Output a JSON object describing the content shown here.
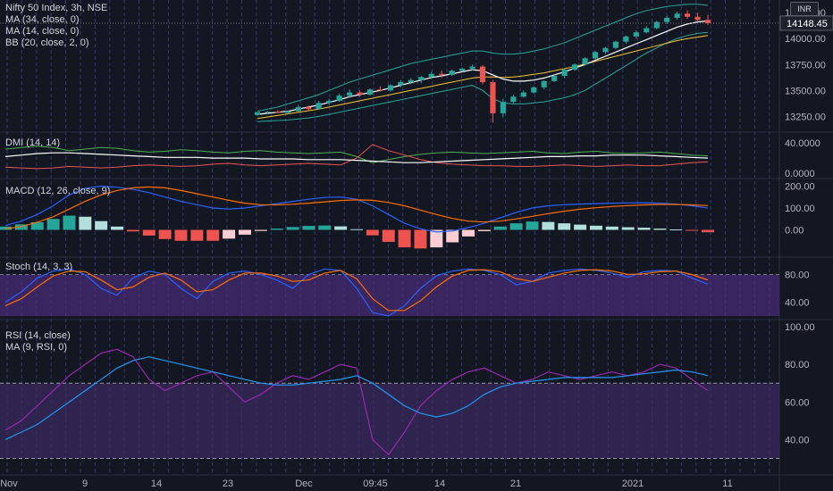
{
  "chart_data": {
    "type": "candlestick-with-indicators",
    "symbol": "Nifty 50 Index, 3h, NSE",
    "currency": "INR",
    "last_price_label": "14148.45",
    "price_ticks": [
      "14250.00",
      "14000.00",
      "13750.00",
      "13500.00",
      "13250.00"
    ],
    "price_tick_values": [
      14250,
      14000,
      13750,
      13500,
      13250
    ],
    "x_labels": [
      "Nov",
      "9",
      "14",
      "23",
      "Dec",
      "09:45",
      "14",
      "21",
      "2021",
      "11"
    ],
    "candles": [
      [
        13264,
        13290,
        13255,
        13292
      ],
      [
        13290,
        13300,
        13270,
        13295
      ],
      [
        13295,
        13310,
        13282,
        13285
      ],
      [
        13285,
        13305,
        13275,
        13300
      ],
      [
        13300,
        13360,
        13295,
        13340
      ],
      [
        13340,
        13355,
        13300,
        13320
      ],
      [
        13320,
        13400,
        13315,
        13380
      ],
      [
        13380,
        13420,
        13360,
        13400
      ],
      [
        13400,
        13470,
        13390,
        13450
      ],
      [
        13450,
        13510,
        13430,
        13480
      ],
      [
        13480,
        13500,
        13440,
        13460
      ],
      [
        13460,
        13520,
        13450,
        13510
      ],
      [
        13510,
        13540,
        13490,
        13500
      ],
      [
        13500,
        13560,
        13490,
        13550
      ],
      [
        13550,
        13600,
        13530,
        13580
      ],
      [
        13580,
        13620,
        13560,
        13600
      ],
      [
        13600,
        13640,
        13570,
        13630
      ],
      [
        13630,
        13680,
        13610,
        13660
      ],
      [
        13660,
        13690,
        13620,
        13650
      ],
      [
        13650,
        13700,
        13640,
        13690
      ],
      [
        13690,
        13720,
        13680,
        13710
      ],
      [
        13710,
        13750,
        13690,
        13730
      ],
      [
        13730,
        13745,
        13560,
        13580
      ],
      [
        13580,
        13600,
        13190,
        13280
      ],
      [
        13280,
        13420,
        13240,
        13390
      ],
      [
        13390,
        13460,
        13370,
        13440
      ],
      [
        13440,
        13500,
        13430,
        13480
      ],
      [
        13480,
        13540,
        13470,
        13530
      ],
      [
        13530,
        13600,
        13510,
        13590
      ],
      [
        13590,
        13660,
        13580,
        13640
      ],
      [
        13640,
        13710,
        13620,
        13700
      ],
      [
        13700,
        13760,
        13690,
        13750
      ],
      [
        13750,
        13820,
        13740,
        13810
      ],
      [
        13810,
        13880,
        13800,
        13870
      ],
      [
        13870,
        13920,
        13850,
        13910
      ],
      [
        13910,
        13980,
        13900,
        13970
      ],
      [
        13970,
        14030,
        13950,
        14020
      ],
      [
        14020,
        14080,
        14000,
        14060
      ],
      [
        14060,
        14120,
        14050,
        14100
      ],
      [
        14100,
        14170,
        14090,
        14160
      ],
      [
        14160,
        14220,
        14140,
        14200
      ],
      [
        14200,
        14260,
        14180,
        14240
      ],
      [
        14240,
        14270,
        14190,
        14210
      ],
      [
        14210,
        14250,
        14160,
        14180
      ],
      [
        14180,
        14230,
        14130,
        14148.45
      ]
    ],
    "overlay_legends": [
      "MA (34, close, 0)",
      "MA (14, close, 0)",
      "BB (20, close, 2, 0)"
    ],
    "ma34": [
      13230,
      13245,
      13260,
      13275,
      13290,
      13305,
      13320,
      13340,
      13360,
      13380,
      13400,
      13420,
      13440,
      13460,
      13480,
      13500,
      13520,
      13540,
      13560,
      13580,
      13600,
      13620,
      13630,
      13630,
      13625,
      13630,
      13640,
      13655,
      13670,
      13690,
      13710,
      13730,
      13755,
      13780,
      13805,
      13830,
      13855,
      13880,
      13905,
      13930,
      13955,
      13980,
      14000,
      14015,
      14030
    ],
    "ma14": [
      13270,
      13280,
      13290,
      13300,
      13320,
      13340,
      13360,
      13385,
      13410,
      13440,
      13460,
      13480,
      13500,
      13525,
      13550,
      13575,
      13600,
      13625,
      13640,
      13660,
      13680,
      13700,
      13690,
      13650,
      13610,
      13590,
      13590,
      13600,
      13620,
      13650,
      13680,
      13715,
      13750,
      13790,
      13830,
      13870,
      13910,
      13950,
      13990,
      14030,
      14070,
      14110,
      14140,
      14160,
      14170
    ],
    "bb_upper": [
      13300,
      13320,
      13340,
      13370,
      13400,
      13430,
      13460,
      13500,
      13540,
      13580,
      13610,
      13640,
      13670,
      13700,
      13730,
      13760,
      13780,
      13800,
      13820,
      13840,
      13860,
      13880,
      13880,
      13860,
      13850,
      13850,
      13860,
      13880,
      13900,
      13930,
      13960,
      14000,
      14040,
      14080,
      14120,
      14160,
      14200,
      14240,
      14270,
      14290,
      14310,
      14320,
      14330,
      14330,
      14320
    ],
    "bb_lower": [
      13200,
      13205,
      13210,
      13215,
      13225,
      13235,
      13250,
      13270,
      13290,
      13310,
      13330,
      13350,
      13370,
      13390,
      13410,
      13430,
      13450,
      13470,
      13490,
      13510,
      13530,
      13550,
      13500,
      13420,
      13380,
      13370,
      13370,
      13380,
      13390,
      13410,
      13430,
      13460,
      13500,
      13560,
      13620,
      13680,
      13740,
      13800,
      13860,
      13910,
      13960,
      14000,
      14030,
      14050,
      14060
    ],
    "dmi": {
      "legend": "DMI (14, 14)",
      "ticks": [
        "40.0000",
        "0.0000"
      ],
      "plus_di": [
        32,
        34,
        36,
        34,
        30,
        32,
        34,
        33,
        30,
        28,
        29,
        31,
        30,
        28,
        27,
        29,
        30,
        28,
        27,
        26,
        27,
        28,
        22,
        14,
        18,
        22,
        25,
        27,
        28,
        27,
        26,
        27,
        28,
        29,
        27,
        26,
        28,
        29,
        27,
        26,
        27,
        28,
        26,
        24,
        23
      ],
      "minus_di": [
        8,
        7,
        6,
        7,
        9,
        8,
        7,
        8,
        10,
        11,
        10,
        9,
        10,
        12,
        13,
        11,
        10,
        11,
        12,
        13,
        12,
        11,
        20,
        38,
        30,
        24,
        18,
        14,
        12,
        11,
        10,
        10,
        9,
        9,
        10,
        11,
        10,
        9,
        10,
        11,
        10,
        10,
        12,
        14,
        15
      ],
      "adx": [
        22,
        24,
        26,
        27,
        27,
        26,
        25,
        24,
        23,
        22,
        21,
        21,
        21,
        20,
        20,
        20,
        19,
        19,
        19,
        18,
        18,
        18,
        17,
        16,
        15,
        14,
        14,
        15,
        16,
        17,
        18,
        19,
        20,
        21,
        22,
        22,
        23,
        23,
        24,
        24,
        24,
        23,
        22,
        21,
        20
      ]
    },
    "macd": {
      "legend": "MACD (12, 26, close, 9)",
      "ticks": [
        "200.00",
        "100.00",
        "0.00"
      ],
      "tick_values": [
        200,
        100,
        0
      ],
      "macd": [
        20,
        40,
        70,
        110,
        160,
        190,
        200,
        195,
        185,
        170,
        150,
        130,
        115,
        100,
        95,
        100,
        110,
        120,
        130,
        140,
        148,
        150,
        140,
        110,
        70,
        30,
        5,
        -10,
        -5,
        10,
        30,
        55,
        80,
        100,
        110,
        115,
        118,
        120,
        122,
        123,
        124,
        122,
        118,
        110,
        100
      ],
      "signal": [
        5,
        15,
        35,
        60,
        95,
        130,
        160,
        180,
        192,
        196,
        192,
        180,
        165,
        150,
        135,
        122,
        115,
        114,
        117,
        122,
        128,
        134,
        137,
        135,
        125,
        110,
        90,
        70,
        52,
        40,
        36,
        40,
        50,
        62,
        74,
        85,
        94,
        101,
        107,
        111,
        114,
        116,
        116,
        114,
        111
      ],
      "hist": [
        15,
        25,
        35,
        50,
        65,
        60,
        40,
        15,
        -7,
        -26,
        -42,
        -50,
        -50,
        -50,
        -40,
        -22,
        -5,
        6,
        13,
        18,
        20,
        16,
        3,
        -25,
        -55,
        -80,
        -85,
        -80,
        -57,
        -30,
        -6,
        15,
        30,
        38,
        36,
        30,
        24,
        19,
        15,
        12,
        10,
        6,
        2,
        -4,
        -11
      ]
    },
    "stoch": {
      "legend": "Stoch (14, 3, 3)",
      "ticks": [
        "80.00",
        "40.00"
      ],
      "tick_values": [
        80,
        40
      ],
      "k": [
        40,
        55,
        75,
        85,
        88,
        80,
        60,
        50,
        75,
        85,
        80,
        60,
        45,
        70,
        82,
        85,
        80,
        72,
        60,
        80,
        88,
        86,
        60,
        25,
        20,
        35,
        60,
        78,
        85,
        88,
        86,
        80,
        65,
        70,
        82,
        86,
        88,
        86,
        82,
        76,
        84,
        86,
        85,
        75,
        66
      ],
      "d": [
        35,
        45,
        62,
        78,
        85,
        84,
        72,
        58,
        62,
        76,
        82,
        72,
        55,
        58,
        72,
        82,
        82,
        78,
        70,
        72,
        82,
        86,
        74,
        45,
        28,
        28,
        42,
        62,
        78,
        86,
        87,
        84,
        74,
        70,
        76,
        82,
        86,
        87,
        85,
        80,
        81,
        84,
        85,
        80,
        72
      ]
    },
    "rsi": {
      "legend": [
        "RSI (14, close)",
        "MA (9, RSI, 0)"
      ],
      "ticks": [
        "100.00",
        "80.00",
        "60.00",
        "40.00"
      ],
      "tick_values": [
        100,
        80,
        60,
        40
      ],
      "rsi": [
        45,
        50,
        58,
        66,
        74,
        80,
        86,
        88,
        84,
        72,
        66,
        70,
        74,
        76,
        68,
        60,
        64,
        70,
        74,
        72,
        76,
        80,
        78,
        40,
        32,
        44,
        58,
        66,
        72,
        76,
        78,
        74,
        70,
        72,
        76,
        74,
        72,
        74,
        76,
        74,
        76,
        80,
        78,
        72,
        66
      ],
      "ma": [
        40,
        44,
        48,
        54,
        60,
        66,
        72,
        78,
        82,
        84,
        82,
        80,
        78,
        76,
        74,
        72,
        70,
        69,
        69,
        70,
        71,
        72,
        74,
        70,
        64,
        58,
        54,
        52,
        54,
        58,
        64,
        68,
        70,
        71,
        72,
        73,
        73,
        73,
        73,
        74,
        75,
        76,
        77,
        76,
        74
      ]
    },
    "colors": {
      "background": "#131722",
      "grid_dash": "#4a5bb0",
      "candle_up": "#26a69a",
      "candle_down": "#ef5350",
      "ma34": "#f4c430",
      "ma14": "#ffffff",
      "bollinger": "#26a69a",
      "plus_di": "#4caf50",
      "minus_di": "#ef5350",
      "adx": "#ffffff",
      "macd_line": "#2962ff",
      "signal_line": "#ff6d00",
      "stoch_k": "#2962ff",
      "stoch_d": "#ff6d00",
      "stoch_band": "#4a2c7a",
      "rsi_line": "#9c27b0",
      "rsi_ma": "#2196f3",
      "rsi_band": "#3a2a5e"
    }
  }
}
